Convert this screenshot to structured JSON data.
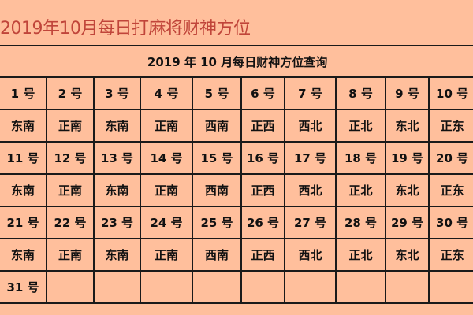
{
  "page_title": "2019年10月每日打麻将财神方位",
  "table": {
    "header": "2019 年 10 月每日财神方位查询",
    "rows": [
      {
        "days": [
          "1 号",
          "2 号",
          "3 号",
          "4 号",
          "5 号",
          "6 号",
          "7 号",
          "8 号",
          "9 号",
          "10 号"
        ],
        "directions": [
          "东南",
          "正南",
          "东南",
          "正南",
          "西南",
          "正西",
          "西北",
          "正北",
          "东北",
          "正东"
        ]
      },
      {
        "days": [
          "11 号",
          "12 号",
          "13 号",
          "14 号",
          "15 号",
          "16 号",
          "17 号",
          "18 号",
          "19 号",
          "20 号"
        ],
        "directions": [
          "东南",
          "正南",
          "东南",
          "正南",
          "西南",
          "正西",
          "西北",
          "正北",
          "东北",
          "正东"
        ]
      },
      {
        "days": [
          "21 号",
          "22 号",
          "23 号",
          "24 号",
          "25 号",
          "26 号",
          "27 号",
          "28 号",
          "29 号",
          "30 号"
        ],
        "directions": [
          "东南",
          "正南",
          "东南",
          "正南",
          "西南",
          "正西",
          "西北",
          "正北",
          "东北",
          "正东"
        ]
      },
      {
        "days": [
          "31 号",
          "",
          "",
          "",
          "",
          "",
          "",
          "",
          "",
          ""
        ]
      }
    ]
  }
}
